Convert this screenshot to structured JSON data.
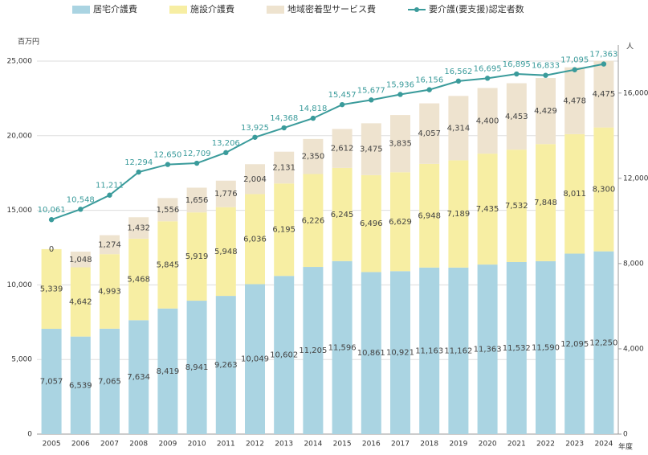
{
  "chart_data": {
    "type": "bar",
    "y_unit": "百万円",
    "y2_unit": "人",
    "x_unit": "年度",
    "categories": [
      "2005",
      "2006",
      "2007",
      "2008",
      "2009",
      "2010",
      "2011",
      "2012",
      "2013",
      "2014",
      "2015",
      "2016",
      "2017",
      "2018",
      "2019",
      "2020",
      "2021",
      "2022",
      "2023",
      "2024"
    ],
    "stacked": true,
    "series": [
      {
        "name": "居宅介護費",
        "color": "#aad4e2",
        "values": [
          7057,
          6539,
          7065,
          7634,
          8419,
          8941,
          9263,
          10049,
          10602,
          11205,
          11596,
          10861,
          10921,
          11163,
          11162,
          11363,
          11532,
          11590,
          12095,
          12250
        ],
        "value_labels": [
          "7,057",
          "6,539",
          "7,065",
          "7,634",
          "8,419",
          "8,941",
          "9,263",
          "10,049",
          "10,602",
          "11,205",
          "11,596",
          "10,861",
          "10,921",
          "11,163",
          "11,162",
          "11,363",
          "11,532",
          "11,590",
          "12,095",
          "12,250"
        ]
      },
      {
        "name": "施設介護費",
        "color": "#f7eea3",
        "values": [
          5339,
          4642,
          4993,
          5468,
          5845,
          5919,
          5948,
          6036,
          6195,
          6226,
          6245,
          6496,
          6629,
          6948,
          7189,
          7435,
          7532,
          7848,
          8011,
          8300
        ],
        "value_labels": [
          "5,339",
          "4,642",
          "4,993",
          "5,468",
          "5,845",
          "5,919",
          "5,948",
          "6,036",
          "6,195",
          "6,226",
          "6,245",
          "6,496",
          "6,629",
          "6,948",
          "7,189",
          "7,435",
          "7,532",
          "7,848",
          "8,011",
          "8,300"
        ]
      },
      {
        "name": "地域密着型サービス費",
        "color": "#eee3cf",
        "values": [
          0,
          1048,
          1274,
          1432,
          1556,
          1656,
          1776,
          2004,
          2131,
          2350,
          2612,
          3475,
          3835,
          4057,
          4314,
          4400,
          4453,
          4429,
          4478,
          4475
        ],
        "value_labels": [
          "0",
          "1,048",
          "1,274",
          "1,432",
          "1,556",
          "1,656",
          "1,776",
          "2,004",
          "2,131",
          "2,350",
          "2,612",
          "3,475",
          "3,835",
          "4,057",
          "4,314",
          "4,400",
          "4,453",
          "4,429",
          "4,478",
          "4,475"
        ]
      },
      {
        "name": "要介護(要支援)認定者数",
        "type": "line",
        "axis": "y2",
        "color": "#3a9b9b",
        "values": [
          10061,
          10548,
          11211,
          12294,
          12650,
          12709,
          13206,
          13925,
          14368,
          14818,
          15457,
          15677,
          15936,
          16156,
          16562,
          16695,
          16895,
          16833,
          17095,
          17363
        ],
        "value_labels": [
          "10,061",
          "10,548",
          "11,211",
          "12,294",
          "12,650",
          "12,709",
          "13,206",
          "13,925",
          "14,368",
          "14,818",
          "15,457",
          "15,677",
          "15,936",
          "16,156",
          "16,562",
          "16,695",
          "16,895",
          "16,833",
          "17,095",
          "17,363"
        ]
      }
    ],
    "ylim": [
      0,
      25000
    ],
    "yticks": [
      0,
      {
        "value": 5000,
        "label": "5,000"
      },
      {
        "value": 10000,
        "label": "10,000"
      },
      {
        "value": 15000,
        "label": "15,000"
      },
      {
        "value": 20000,
        "label": "20,000"
      },
      {
        "value": 25000,
        "label": "25,000"
      }
    ],
    "y2lim": [
      0,
      17500
    ],
    "y2ticks": [
      0,
      {
        "value": 4000,
        "label": "4,000"
      },
      {
        "value": 8000,
        "label": "8,000"
      },
      {
        "value": 12000,
        "label": "12,000"
      },
      {
        "value": 16000,
        "label": "16,000"
      }
    ],
    "grid": true,
    "legend": "top"
  }
}
